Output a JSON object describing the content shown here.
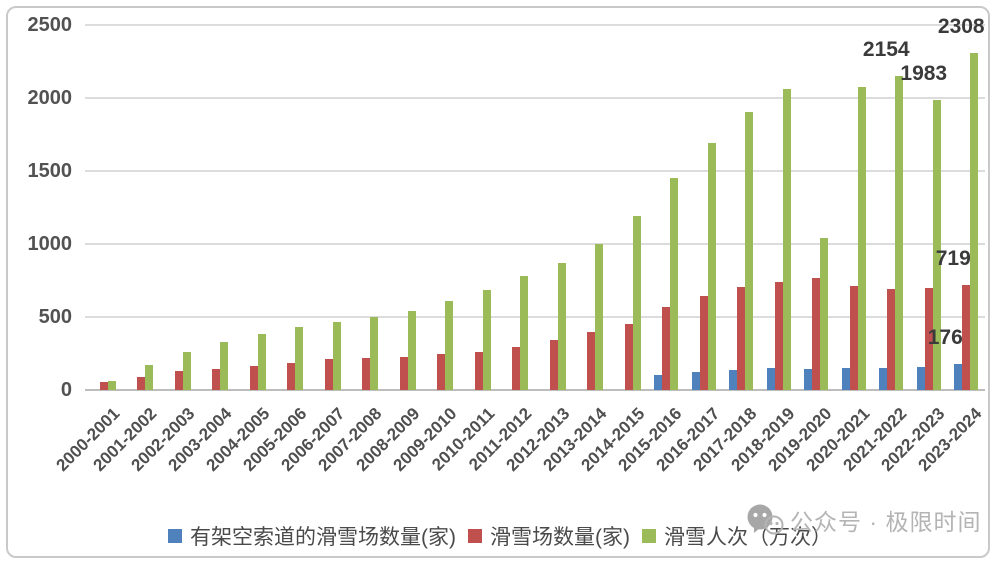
{
  "chart_data": {
    "type": "bar",
    "title": "",
    "xlabel": "",
    "ylabel": "",
    "ylim": [
      0,
      2500
    ],
    "yticks": [
      0,
      500,
      1000,
      1500,
      2000,
      2500
    ],
    "grid": true,
    "legend_position": "bottom",
    "categories": [
      "2000-2001",
      "2001-2002",
      "2002-2003",
      "2003-2004",
      "2004-2005",
      "2005-2006",
      "2006-2007",
      "2007-2008",
      "2008-2009",
      "2009-2010",
      "2010-2011",
      "2011-2012",
      "2012-2013",
      "2013-2014",
      "2014-2015",
      "2015-2016",
      "2016-2017",
      "2017-2018",
      "2018-2019",
      "2019-2020",
      "2020-2021",
      "2021-2022",
      "2022-2023",
      "2023-2024"
    ],
    "series": [
      {
        "name": "有架空索道的滑雪场数量(家)",
        "key": "ropeway",
        "color": "#4F81BD",
        "values": [
          null,
          null,
          null,
          null,
          null,
          null,
          null,
          null,
          null,
          null,
          null,
          null,
          null,
          null,
          null,
          100,
          120,
          140,
          148,
          145,
          148,
          152,
          160,
          176
        ]
      },
      {
        "name": "滑雪场数量(家)",
        "key": "resorts",
        "color": "#C0504D",
        "values": [
          55,
          90,
          130,
          145,
          165,
          186,
          210,
          221,
          228,
          246,
          262,
          295,
          340,
          395,
          450,
          568,
          646,
          703,
          742,
          770,
          715,
          692,
          697,
          719
        ]
      },
      {
        "name": "滑雪人次（万次）",
        "key": "visits",
        "color": "#9BBB59",
        "values": [
          65,
          170,
          258,
          330,
          385,
          430,
          466,
          500,
          538,
          610,
          685,
          778,
          868,
          1000,
          1195,
          1450,
          1690,
          1905,
          2060,
          1040,
          2076,
          2154,
          1983,
          2308
        ]
      }
    ],
    "data_labels": [
      {
        "series_index": 2,
        "category_index": 21,
        "text": "2154"
      },
      {
        "series_index": 2,
        "category_index": 22,
        "text": "1983"
      },
      {
        "series_index": 2,
        "category_index": 23,
        "text": "2308"
      },
      {
        "series_index": 1,
        "category_index": 23,
        "text": "719"
      },
      {
        "series_index": 0,
        "category_index": 23,
        "text": "176"
      }
    ]
  },
  "watermark": {
    "icon": "wechat-official-account-icon",
    "text": "公众号 · 极限时间"
  }
}
